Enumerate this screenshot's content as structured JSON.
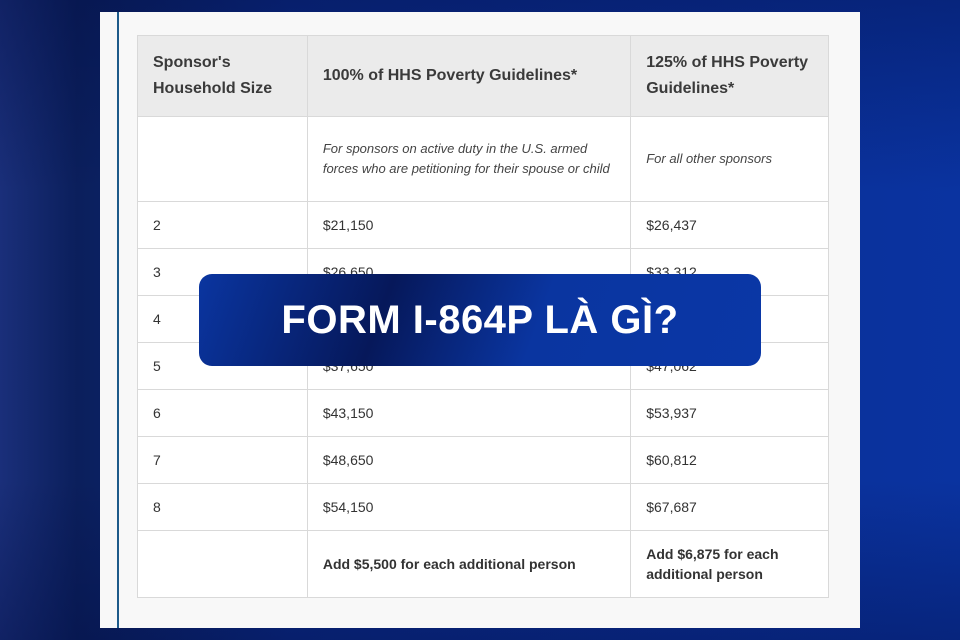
{
  "table": {
    "headers": [
      "Sponsor's Household Size",
      "100% of HHS Poverty Guidelines*",
      "125% of HHS Poverty Guidelines*"
    ],
    "description": [
      "",
      "For sponsors on active duty in the U.S. armed forces who are petitioning for their spouse or child",
      "For all other sponsors"
    ],
    "rows": [
      [
        "2",
        "$21,150",
        "$26,437"
      ],
      [
        "3",
        "$26,650",
        "$33,312"
      ],
      [
        "4",
        "",
        ""
      ],
      [
        "5",
        "$37,650",
        "$47,062"
      ],
      [
        "6",
        "$43,150",
        "$53,937"
      ],
      [
        "7",
        "$48,650",
        "$60,812"
      ],
      [
        "8",
        "$54,150",
        "$67,687"
      ]
    ],
    "footer": [
      "",
      "Add $5,500 for each additional person",
      "Add $6,875 for each additional person"
    ]
  },
  "banner": {
    "title": "FORM I-864P LÀ GÌ?"
  }
}
